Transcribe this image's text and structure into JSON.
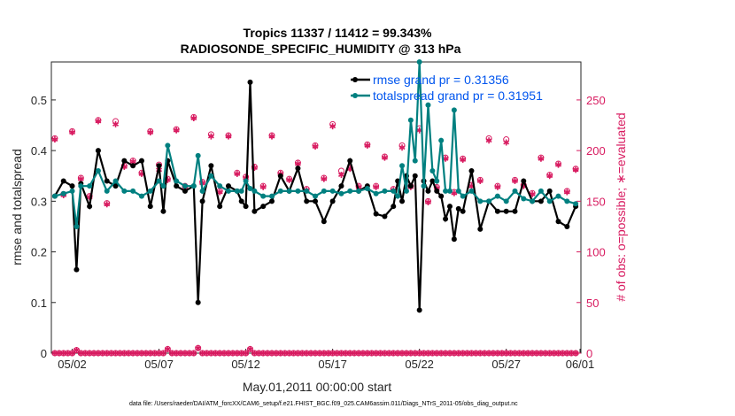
{
  "chart_data": {
    "type": "line",
    "title": [
      "Tropics 11337 / 11412 = 99.343%",
      "RADIOSONDE_SPECIFIC_HUMIDITY @ 313 hPa"
    ],
    "xlabel": "May.01,2011 00:00:00 start",
    "ylabel_left": "rmse and totalspread",
    "ylabel_right": "# of obs: o=possible; ∗=evaluated",
    "footnote": "data file: /Users/raeder/DAI/ATM_forcXX/CAM6_setup/f.e21.FHIST_BGC.f09_025.CAM6assim.011/Diags_NTrS_2011-05/obs_diag_output.nc",
    "xlim": [
      0.8,
      31.3
    ],
    "ylim_left": [
      0,
      0.575
    ],
    "ylim_right": [
      0,
      287.5
    ],
    "x_tick_values": [
      2,
      7,
      12,
      17,
      22,
      27,
      32
    ],
    "x_tick_labels": [
      "05/02",
      "05/07",
      "05/12",
      "05/17",
      "05/22",
      "05/27",
      "06/01"
    ],
    "left_ticks": [
      "0",
      "0.1",
      "0.2",
      "0.3",
      "0.4",
      "0.5"
    ],
    "left_tick_values": [
      0,
      0.1,
      0.2,
      0.3,
      0.4,
      0.5
    ],
    "right_ticks": [
      "0",
      "50",
      "100",
      "150",
      "200",
      "250"
    ],
    "right_tick_values": [
      0,
      50,
      100,
      150,
      200,
      250
    ],
    "colors": {
      "rmse": "#000000",
      "spread": "#008080",
      "obs": "#d81b60",
      "legend_text": "#0055ee"
    },
    "legend": [
      "rmse grand pr = 0.31356",
      "totalspread grand pr = 0.31951"
    ],
    "series": [
      {
        "name": "rmse",
        "x": [
          1.0,
          1.5,
          2.0,
          2.25,
          2.5,
          3.0,
          3.5,
          4.0,
          4.5,
          5.0,
          5.5,
          6.0,
          6.5,
          7.0,
          7.25,
          7.5,
          8.0,
          8.5,
          9.0,
          9.25,
          9.5,
          10.0,
          10.5,
          11.0,
          11.5,
          11.75,
          12.0,
          12.25,
          12.5,
          13.0,
          13.5,
          14.0,
          14.5,
          15.0,
          15.5,
          16.0,
          16.5,
          17.0,
          17.5,
          18.0,
          18.5,
          19.0,
          19.5,
          20.0,
          20.5,
          20.75,
          21.0,
          21.25,
          21.5,
          21.75,
          22.0,
          22.25,
          22.5,
          22.75,
          23.0,
          23.25,
          23.5,
          23.75,
          24.0,
          24.25,
          24.5,
          25.0,
          25.5,
          26.0,
          26.5,
          27.0,
          27.5,
          28.0,
          28.5,
          29.0,
          29.5,
          30.0,
          30.5,
          31.0
        ],
        "values": [
          0.31,
          0.34,
          0.33,
          0.165,
          0.335,
          0.29,
          0.4,
          0.34,
          0.33,
          0.38,
          0.37,
          0.38,
          0.29,
          0.37,
          0.28,
          0.38,
          0.33,
          0.32,
          0.33,
          0.1,
          0.3,
          0.37,
          0.29,
          0.33,
          0.32,
          0.3,
          0.29,
          0.535,
          0.28,
          0.29,
          0.3,
          0.35,
          0.32,
          0.365,
          0.3,
          0.3,
          0.26,
          0.3,
          0.33,
          0.38,
          0.32,
          0.33,
          0.275,
          0.27,
          0.29,
          0.34,
          0.3,
          0.35,
          0.33,
          0.35,
          0.085,
          0.34,
          0.32,
          0.34,
          0.32,
          0.31,
          0.265,
          0.29,
          0.225,
          0.285,
          0.28,
          0.36,
          0.245,
          0.3,
          0.28,
          0.28,
          0.28,
          0.34,
          0.3,
          0.3,
          0.32,
          0.26,
          0.25,
          0.29
        ]
      },
      {
        "name": "totalspread",
        "x": [
          1.0,
          1.5,
          2.0,
          2.25,
          2.5,
          3.0,
          3.5,
          4.0,
          4.5,
          5.0,
          5.5,
          6.0,
          6.5,
          7.0,
          7.25,
          7.5,
          8.0,
          8.5,
          9.0,
          9.25,
          9.5,
          10.0,
          10.5,
          11.0,
          11.5,
          11.75,
          12.0,
          12.25,
          12.5,
          13.0,
          13.5,
          14.0,
          14.5,
          15.0,
          15.5,
          16.0,
          16.5,
          17.0,
          17.5,
          18.0,
          18.5,
          19.0,
          19.5,
          20.0,
          20.5,
          20.75,
          21.0,
          21.25,
          21.5,
          21.75,
          22.0,
          22.25,
          22.5,
          22.75,
          23.0,
          23.25,
          23.5,
          23.75,
          24.0,
          24.25,
          24.5,
          25.0,
          25.5,
          26.0,
          26.5,
          27.0,
          27.5,
          28.0,
          28.5,
          29.0,
          29.5,
          30.0,
          30.5,
          31.0
        ],
        "values": [
          0.31,
          0.315,
          0.32,
          0.25,
          0.33,
          0.33,
          0.36,
          0.32,
          0.34,
          0.32,
          0.32,
          0.31,
          0.32,
          0.34,
          0.33,
          0.41,
          0.34,
          0.33,
          0.33,
          0.39,
          0.32,
          0.35,
          0.33,
          0.32,
          0.32,
          0.32,
          0.34,
          0.325,
          0.32,
          0.31,
          0.31,
          0.32,
          0.32,
          0.32,
          0.32,
          0.31,
          0.32,
          0.32,
          0.315,
          0.32,
          0.32,
          0.325,
          0.315,
          0.32,
          0.32,
          0.31,
          0.37,
          0.32,
          0.46,
          0.38,
          0.575,
          0.33,
          0.49,
          0.36,
          0.34,
          0.42,
          0.32,
          0.32,
          0.48,
          0.32,
          0.31,
          0.32,
          0.3,
          0.3,
          0.31,
          0.3,
          0.32,
          0.305,
          0.3,
          0.32,
          0.3,
          0.31,
          0.3,
          0.295
        ]
      },
      {
        "name": "obs possible",
        "x": [
          1.0,
          1.5,
          2.0,
          2.5,
          3.0,
          3.5,
          4.0,
          4.5,
          5.0,
          5.5,
          6.0,
          6.5,
          7.0,
          7.5,
          8.0,
          8.5,
          9.0,
          9.5,
          10.0,
          10.5,
          11.0,
          11.5,
          12.0,
          12.5,
          13.0,
          13.5,
          14.0,
          14.5,
          15.0,
          15.5,
          16.0,
          16.5,
          17.0,
          17.5,
          18.0,
          18.5,
          19.0,
          19.5,
          20.0,
          20.5,
          21.0,
          21.5,
          22.0,
          22.5,
          23.0,
          23.5,
          24.0,
          24.5,
          25.0,
          25.5,
          26.0,
          26.5,
          27.0,
          27.5,
          28.0,
          28.5,
          29.0,
          29.5,
          30.0,
          30.5,
          31.0
        ],
        "values": [
          212,
          157,
          219,
          173,
          155,
          230,
          148,
          229,
          185,
          190,
          178,
          219,
          186,
          172,
          221,
          165,
          233,
          169,
          216,
          160,
          215,
          178,
          174,
          184,
          165,
          215,
          178,
          172,
          188,
          162,
          205,
          173,
          226,
          180,
          183,
          165,
          206,
          165,
          194,
          162,
          205,
          165,
          222,
          150,
          164,
          193,
          159,
          192,
          166,
          171,
          212,
          165,
          211,
          171,
          166,
          158,
          193,
          176,
          187,
          160,
          182
        ],
        "names": "circles"
      },
      {
        "name": "obs evaluated",
        "x": [
          1.0,
          1.5,
          2.0,
          2.5,
          3.0,
          3.5,
          4.0,
          4.5,
          5.0,
          5.5,
          6.0,
          6.5,
          7.0,
          7.5,
          8.0,
          8.5,
          9.0,
          9.5,
          10.0,
          10.5,
          11.0,
          11.5,
          12.0,
          12.5,
          13.0,
          13.5,
          14.0,
          14.5,
          15.0,
          15.5,
          16.0,
          16.5,
          17.0,
          17.5,
          18.0,
          18.5,
          19.0,
          19.5,
          20.0,
          20.5,
          21.0,
          21.5,
          22.0,
          22.5,
          23.0,
          23.5,
          24.0,
          24.5,
          25.0,
          25.5,
          26.0,
          26.5,
          27.0,
          27.5,
          28.0,
          28.5,
          29.0,
          29.5,
          30.0,
          30.5,
          31.0
        ],
        "values": [
          211,
          156,
          218,
          172,
          154,
          229,
          147,
          226,
          184,
          189,
          177,
          218,
          181,
          171,
          220,
          164,
          232,
          168,
          214,
          159,
          214,
          177,
          173,
          183,
          164,
          214,
          177,
          171,
          187,
          161,
          204,
          172,
          224,
          176,
          182,
          164,
          205,
          164,
          193,
          161,
          203,
          164,
          220,
          149,
          163,
          192,
          158,
          191,
          165,
          170,
          210,
          164,
          208,
          170,
          165,
          157,
          192,
          175,
          186,
          159,
          181
        ]
      },
      {
        "name": "obs evaluated (bottom)",
        "x": [
          1.0,
          1.25,
          1.5,
          1.75,
          2.0,
          2.25,
          2.5,
          2.75,
          3.0,
          3.25,
          3.5,
          3.75,
          4.0,
          4.25,
          4.5,
          4.75,
          5.0,
          5.25,
          5.5,
          5.75,
          6.0,
          6.25,
          6.5,
          6.75,
          7.0,
          7.25,
          7.5,
          7.75,
          8.0,
          8.25,
          8.5,
          8.75,
          9.0,
          9.25,
          9.5,
          9.75,
          10.0,
          10.25,
          10.5,
          10.75,
          11.0,
          11.25,
          11.5,
          11.75,
          12.0,
          12.25,
          12.5,
          12.75,
          13.0,
          13.25,
          13.5,
          13.75,
          14.0,
          14.25,
          14.5,
          14.75,
          15.0,
          15.25,
          15.5,
          15.75,
          16.0,
          16.25,
          16.5,
          16.75,
          17.0,
          17.25,
          17.5,
          17.75,
          18.0,
          18.25,
          18.5,
          18.75,
          19.0,
          19.25,
          19.5,
          19.75,
          20.0,
          20.25,
          20.5,
          20.75,
          21.0,
          21.25,
          21.5,
          21.75,
          22.0,
          22.25,
          22.5,
          22.75,
          23.0,
          23.25,
          23.5,
          23.75,
          24.0,
          24.25,
          24.5,
          24.75,
          25.0,
          25.25,
          25.5,
          25.75,
          26.0,
          26.25,
          26.5,
          26.75,
          27.0,
          27.25,
          27.5,
          27.75,
          28.0,
          28.25,
          28.5,
          28.75,
          29.0,
          29.25,
          29.5,
          29.75,
          30.0,
          30.25,
          30.5,
          30.75,
          31.0
        ],
        "values": [
          0,
          0,
          0,
          0,
          0,
          3,
          0,
          0,
          0,
          0,
          0,
          0,
          0,
          0,
          0,
          0,
          0,
          0,
          0,
          0,
          0,
          0,
          0,
          0,
          0,
          0,
          4,
          0,
          0,
          0,
          0,
          0,
          0,
          5,
          0,
          0,
          0,
          0,
          0,
          0,
          0,
          0,
          0,
          0,
          0,
          4,
          0,
          0,
          0,
          0,
          0,
          0,
          0,
          0,
          0,
          0,
          0,
          0,
          0,
          0,
          0,
          0,
          0,
          0,
          0,
          0,
          0,
          0,
          0,
          0,
          0,
          0,
          0,
          0,
          0,
          0,
          0,
          0,
          0,
          0,
          0,
          0,
          0,
          0,
          0,
          0,
          0,
          0,
          0,
          0,
          0,
          0,
          0,
          0,
          0,
          0,
          0,
          0,
          0,
          0,
          0,
          0,
          0,
          0,
          0,
          0,
          0,
          0,
          0,
          0,
          0,
          0,
          0,
          0,
          0,
          0,
          0,
          0,
          0,
          0,
          0
        ]
      }
    ]
  }
}
